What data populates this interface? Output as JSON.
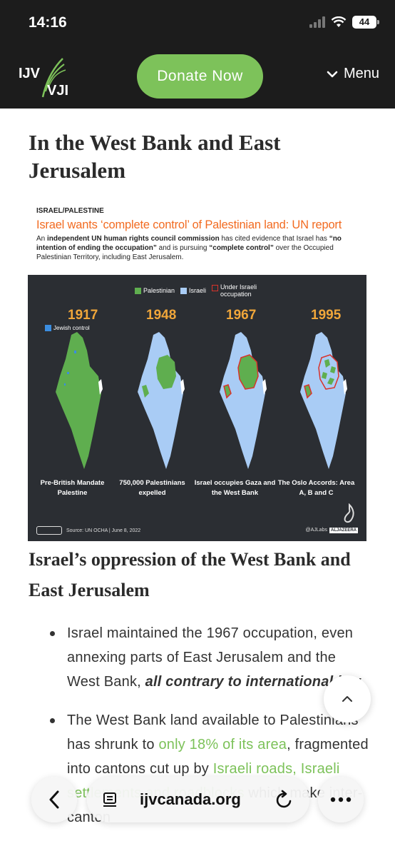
{
  "status": {
    "time": "14:16",
    "battery": "44"
  },
  "nav": {
    "logo_top": "IJV",
    "logo_bottom": "VJI",
    "donate_label": "Donate Now",
    "menu_label": "Menu"
  },
  "article": {
    "heading": "In the West Bank and East Jerusalem",
    "subheading": "Israel’s oppression of the West Bank and East Jerusalem",
    "bullets": [
      {
        "text_a": "Israel maintained the 1967 occupation, even annexing parts of East Jerusalem and the West Bank, ",
        "emph": "all contrary to international law"
      },
      {
        "text_a": "The West Bank land available to Palestinians has shrunk to ",
        "link_a": "only 18% of its area",
        "text_b": ", fragmented into cantons cut up by ",
        "link_b": "Israeli roads, Israeli settlements and roadblocks",
        "text_c": " which make inter-canton"
      }
    ]
  },
  "infographic": {
    "tag": "ISRAEL/PALESTINE",
    "title": "Israel wants ‘complete control’ of Palestinian land: UN report",
    "desc_1": "An ",
    "desc_bold_1": "independent UN human rights council commission",
    "desc_2": " has cited evidence that Israel has ",
    "desc_bold_2": "“no intention of ending the occupation”",
    "desc_3": " and is pursuing ",
    "desc_bold_3": "“complete control”",
    "desc_4": " over the Occupied Palestinian Territory, including East Jerusalem.",
    "legend": {
      "palestinian": "Palestinian",
      "israeli": "Israeli",
      "occupation": "Under Israeli occupation"
    },
    "jewish_control": "Jewish control",
    "years": [
      "1917",
      "1948",
      "1967",
      "1995"
    ],
    "captions": [
      "Pre-British Mandate Palestine",
      "750,000 Palestinians expelled",
      "Israel occupies Gaza and the West Bank",
      "The Oslo Accords: Area A, B and C"
    ],
    "source": "Source: UN OCHA | June 8, 2022",
    "credit": "@AJLabs",
    "brand": "ALJAZEERA",
    "colors": {
      "palestinian": "#5fae4f",
      "israeli": "#a9ccf5",
      "occupation": "#d9332b",
      "year": "#f0a63a",
      "title": "#f26b21"
    }
  },
  "browser": {
    "url": "ijvcanada.org"
  },
  "colors": {
    "accent": "#7dc25a",
    "dark": "#1c1c1c"
  }
}
